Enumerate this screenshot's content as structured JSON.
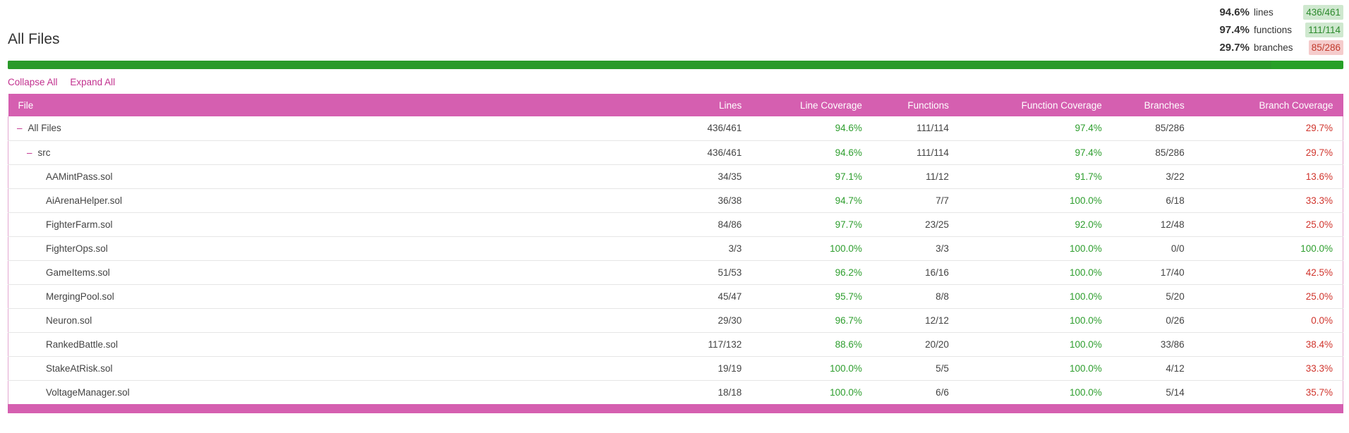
{
  "title": "All Files",
  "summary": [
    {
      "pct": "94.6%",
      "label": "lines",
      "count": "436/461",
      "status": "good"
    },
    {
      "pct": "97.4%",
      "label": "functions",
      "count": "111/114",
      "status": "good"
    },
    {
      "pct": "29.7%",
      "label": "branches",
      "count": "85/286",
      "status": "bad"
    }
  ],
  "progress": {
    "fraction": 0.946,
    "color": "#2a9a2a"
  },
  "controls": {
    "collapse_label": "Collapse All",
    "expand_label": "Expand All"
  },
  "table": {
    "headers": [
      "File",
      "Lines",
      "Line Coverage",
      "Functions",
      "Function Coverage",
      "Branches",
      "Branch Coverage"
    ],
    "rows": [
      {
        "name": "All Files",
        "level": 0,
        "toggle": "–",
        "lines": "436/461",
        "line_cov": "94.6%",
        "line_status": "good",
        "functions": "111/114",
        "func_cov": "97.4%",
        "func_status": "good",
        "branches": "85/286",
        "branch_cov": "29.7%",
        "branch_status": "bad"
      },
      {
        "name": "src",
        "level": 1,
        "toggle": "–",
        "lines": "436/461",
        "line_cov": "94.6%",
        "line_status": "good",
        "functions": "111/114",
        "func_cov": "97.4%",
        "func_status": "good",
        "branches": "85/286",
        "branch_cov": "29.7%",
        "branch_status": "bad"
      },
      {
        "name": "AAMintPass.sol",
        "level": 2,
        "lines": "34/35",
        "line_cov": "97.1%",
        "line_status": "good",
        "functions": "11/12",
        "func_cov": "91.7%",
        "func_status": "good",
        "branches": "3/22",
        "branch_cov": "13.6%",
        "branch_status": "bad"
      },
      {
        "name": "AiArenaHelper.sol",
        "level": 2,
        "lines": "36/38",
        "line_cov": "94.7%",
        "line_status": "good",
        "functions": "7/7",
        "func_cov": "100.0%",
        "func_status": "good",
        "branches": "6/18",
        "branch_cov": "33.3%",
        "branch_status": "bad"
      },
      {
        "name": "FighterFarm.sol",
        "level": 2,
        "lines": "84/86",
        "line_cov": "97.7%",
        "line_status": "good",
        "functions": "23/25",
        "func_cov": "92.0%",
        "func_status": "good",
        "branches": "12/48",
        "branch_cov": "25.0%",
        "branch_status": "bad"
      },
      {
        "name": "FighterOps.sol",
        "level": 2,
        "lines": "3/3",
        "line_cov": "100.0%",
        "line_status": "good",
        "functions": "3/3",
        "func_cov": "100.0%",
        "func_status": "good",
        "branches": "0/0",
        "branch_cov": "100.0%",
        "branch_status": "good"
      },
      {
        "name": "GameItems.sol",
        "level": 2,
        "lines": "51/53",
        "line_cov": "96.2%",
        "line_status": "good",
        "functions": "16/16",
        "func_cov": "100.0%",
        "func_status": "good",
        "branches": "17/40",
        "branch_cov": "42.5%",
        "branch_status": "bad"
      },
      {
        "name": "MergingPool.sol",
        "level": 2,
        "lines": "45/47",
        "line_cov": "95.7%",
        "line_status": "good",
        "functions": "8/8",
        "func_cov": "100.0%",
        "func_status": "good",
        "branches": "5/20",
        "branch_cov": "25.0%",
        "branch_status": "bad"
      },
      {
        "name": "Neuron.sol",
        "level": 2,
        "lines": "29/30",
        "line_cov": "96.7%",
        "line_status": "good",
        "functions": "12/12",
        "func_cov": "100.0%",
        "func_status": "good",
        "branches": "0/26",
        "branch_cov": "0.0%",
        "branch_status": "bad"
      },
      {
        "name": "RankedBattle.sol",
        "level": 2,
        "lines": "117/132",
        "line_cov": "88.6%",
        "line_status": "good",
        "functions": "20/20",
        "func_cov": "100.0%",
        "func_status": "good",
        "branches": "33/86",
        "branch_cov": "38.4%",
        "branch_status": "bad"
      },
      {
        "name": "StakeAtRisk.sol",
        "level": 2,
        "lines": "19/19",
        "line_cov": "100.0%",
        "line_status": "good",
        "functions": "5/5",
        "func_cov": "100.0%",
        "func_status": "good",
        "branches": "4/12",
        "branch_cov": "33.3%",
        "branch_status": "bad"
      },
      {
        "name": "VoltageManager.sol",
        "level": 2,
        "lines": "18/18",
        "line_cov": "100.0%",
        "line_status": "good",
        "functions": "6/6",
        "func_cov": "100.0%",
        "func_status": "good",
        "branches": "5/14",
        "branch_cov": "35.7%",
        "branch_status": "bad"
      }
    ]
  }
}
